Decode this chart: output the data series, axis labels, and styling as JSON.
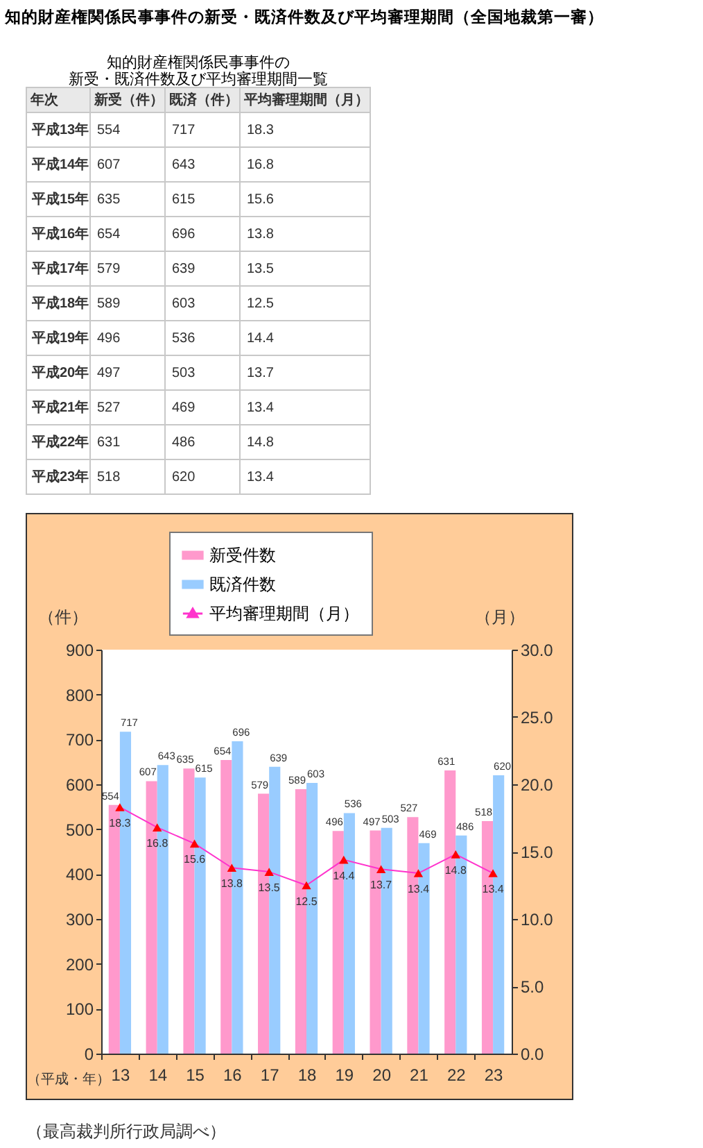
{
  "chart_data": [
    {
      "type": "heatmap",
      "title": "知的財産権関係民事事件の新受・既済件数及び平均審理期間（全国地裁第一審）",
      "subtitle": "知的財産権関係民事事件の新受・既済件数及び平均審理期間一覧",
      "ylabel": "年次",
      "categories": [
        "新受（件）",
        "既済（件）",
        "平均審理期間（月）"
      ],
      "y_categories": [
        "平成13年",
        "平成14年",
        "平成15年",
        "平成16年",
        "平成17年",
        "平成18年",
        "平成19年",
        "平成20年",
        "平成21年",
        "平成22年",
        "平成23年"
      ],
      "cells": [
        [
          554,
          717,
          18.3
        ],
        [
          607,
          643,
          16.8
        ],
        [
          635,
          615,
          15.6
        ],
        [
          654,
          696,
          13.8
        ],
        [
          579,
          639,
          13.5
        ],
        [
          589,
          603,
          12.5
        ],
        [
          496,
          536,
          14.4
        ],
        [
          497,
          503,
          13.7
        ],
        [
          527,
          469,
          13.4
        ],
        [
          631,
          486,
          14.8
        ],
        [
          518,
          620,
          13.4
        ]
      ],
      "data_labels": true
    },
    {
      "type": "bar",
      "categories": [
        "13",
        "14",
        "15",
        "16",
        "17",
        "18",
        "19",
        "20",
        "21",
        "22",
        "23"
      ],
      "xlabel": "（平成・年）",
      "ylabel": "（件）",
      "y2label": "（月）",
      "ylim": [
        0,
        900
      ],
      "yticks": [
        0,
        100,
        200,
        300,
        400,
        500,
        600,
        700,
        800,
        900
      ],
      "y2lim": [
        0,
        30
      ],
      "y2ticks": [
        {
          "value": 0,
          "label": "0.0"
        },
        {
          "value": 5,
          "label": "5.0"
        },
        {
          "value": 10,
          "label": "10.0"
        },
        {
          "value": 15,
          "label": "15.0"
        },
        {
          "value": 20,
          "label": "20.0"
        },
        {
          "value": 25,
          "label": "25.0"
        },
        {
          "value": 30,
          "label": "30.0"
        }
      ],
      "series": [
        {
          "name": "新受件数",
          "color": "#ff99cc",
          "values": [
            554,
            607,
            635,
            654,
            579,
            589,
            496,
            497,
            527,
            631,
            518
          ]
        },
        {
          "name": "既済件数",
          "color": "#99ccff",
          "values": [
            717,
            643,
            615,
            696,
            639,
            603,
            536,
            503,
            469,
            486,
            620
          ]
        },
        {
          "name": "平均審理期間（月）",
          "type": "line",
          "axis": "y2",
          "color": "#ff33cc",
          "colors": [
            "#ff0000",
            "#ff0000",
            "#ff0000",
            "#ff0000",
            "#ff0000",
            "#ff0000",
            "#ff0000",
            "#ff0000",
            "#ff0000",
            "#ff0000",
            "#ff0000"
          ],
          "values": [
            18.3,
            16.8,
            15.6,
            13.8,
            13.5,
            12.5,
            14.4,
            13.7,
            13.4,
            14.8,
            13.4
          ]
        }
      ],
      "marker": "triangle",
      "legend": "top",
      "data_labels": true,
      "annotations": [
        "（最高裁判所行政局調べ）"
      ]
    }
  ]
}
